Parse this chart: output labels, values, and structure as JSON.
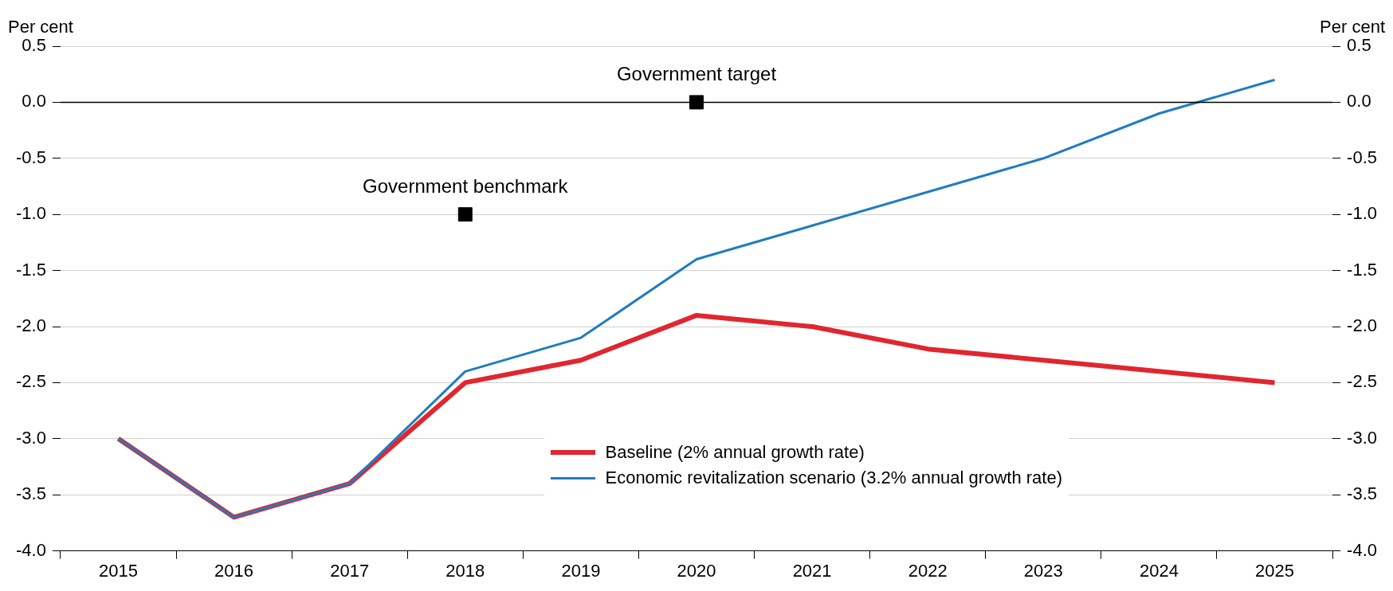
{
  "chart_data": {
    "type": "line",
    "ylabel": "Per cent",
    "y2label": "Per cent",
    "categories": [
      "2015",
      "2016",
      "2017",
      "2018",
      "2019",
      "2020",
      "2021",
      "2022",
      "2023",
      "2024",
      "2025"
    ],
    "series": [
      {
        "name": "Baseline (2% annual growth rate)",
        "color": "#e0262f",
        "values": [
          -3.0,
          -3.7,
          -3.4,
          -2.5,
          -2.3,
          -1.9,
          -2.0,
          -2.2,
          -2.3,
          -2.4,
          -2.5
        ]
      },
      {
        "name": "Economic revitalization scenario (3.2% annual growth rate)",
        "color": "#1f7cc1",
        "values": [
          -3.0,
          -3.7,
          -3.4,
          -2.4,
          -2.1,
          -1.4,
          -1.1,
          -0.8,
          -0.5,
          -0.1,
          0.2
        ]
      },
      {
        "type": "scatter",
        "marker": "square",
        "color": "#000000",
        "values": [
          null,
          null,
          null,
          -1.0,
          null,
          null,
          null,
          null,
          null,
          null,
          null
        ]
      },
      {
        "type": "scatter",
        "marker": "square",
        "color": "#000000",
        "values": [
          null,
          null,
          null,
          null,
          null,
          0.0,
          null,
          null,
          null,
          null,
          null
        ]
      }
    ],
    "annotations": [
      {
        "text": "Government benchmark",
        "x": "2018",
        "y": -1.0
      },
      {
        "text": "Government target",
        "x": "2020",
        "y": 0.0
      }
    ],
    "ylim": [
      -4,
      0.5
    ],
    "yticks": [
      {
        "value": -4,
        "label": "-4.0"
      },
      -3.5,
      {
        "value": -3,
        "label": "-3.0"
      },
      -2.5,
      {
        "value": -2,
        "label": "-2.0"
      },
      -1.5,
      {
        "value": -1,
        "label": "-1.0"
      },
      -0.5,
      {
        "value": 0,
        "label": "0.0"
      },
      0.5
    ],
    "y2lim": [
      -4,
      0.5
    ],
    "y2ticks": [
      {
        "value": -4,
        "label": "-4.0"
      },
      -3.5,
      {
        "value": -3,
        "label": "-3.0"
      },
      -2.5,
      {
        "value": -2,
        "label": "-2.0"
      },
      -1.5,
      {
        "value": -1,
        "label": "-1.0"
      },
      -0.5,
      {
        "value": 0,
        "label": "0.0"
      },
      0.5
    ],
    "ref_lines": [
      {
        "axis": "y",
        "value": 0,
        "color": "#000000"
      }
    ],
    "grid": "y",
    "legend": "bottom",
    "marker": "none",
    "line_style": "solid"
  }
}
